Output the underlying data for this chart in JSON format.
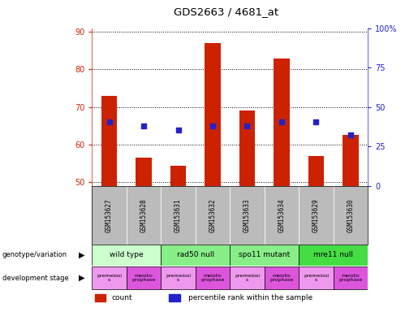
{
  "title": "GDS2663 / 4681_at",
  "samples": [
    "GSM153627",
    "GSM153628",
    "GSM153631",
    "GSM153632",
    "GSM153633",
    "GSM153634",
    "GSM153629",
    "GSM153630"
  ],
  "bar_values": [
    73,
    56.5,
    54.5,
    87,
    69,
    83,
    57,
    62.5
  ],
  "dot_values": [
    66,
    65,
    64,
    65,
    65,
    66,
    66,
    62.5
  ],
  "ylim_left": [
    49,
    91
  ],
  "ylim_right": [
    0,
    100
  ],
  "yticks_left": [
    50,
    60,
    70,
    80,
    90
  ],
  "yticks_right": [
    0,
    25,
    50,
    75,
    100
  ],
  "bar_color": "#cc2200",
  "dot_color": "#2222cc",
  "bar_bottom": 49,
  "genotype_groups": [
    {
      "label": "wild type",
      "start": 0,
      "end": 2,
      "color": "#ccffcc"
    },
    {
      "label": "rad50 null",
      "start": 2,
      "end": 4,
      "color": "#88ee88"
    },
    {
      "label": "spo11 mutant",
      "start": 4,
      "end": 6,
      "color": "#88ee88"
    },
    {
      "label": "mre11 null",
      "start": 6,
      "end": 8,
      "color": "#44dd44"
    }
  ],
  "dev_stage_groups": [
    {
      "label": "premeiosi\ns",
      "start": 0,
      "end": 1,
      "color": "#ee99ee"
    },
    {
      "label": "meiotic\nprophase",
      "start": 1,
      "end": 2,
      "color": "#dd55dd"
    },
    {
      "label": "premeiosi\ns",
      "start": 2,
      "end": 3,
      "color": "#ee99ee"
    },
    {
      "label": "meiotic\nprophase",
      "start": 3,
      "end": 4,
      "color": "#dd55dd"
    },
    {
      "label": "premeiosi\ns",
      "start": 4,
      "end": 5,
      "color": "#ee99ee"
    },
    {
      "label": "meiotic\nprophase",
      "start": 5,
      "end": 6,
      "color": "#dd55dd"
    },
    {
      "label": "premeiosi\ns",
      "start": 6,
      "end": 7,
      "color": "#ee99ee"
    },
    {
      "label": "meiotic\nprophase",
      "start": 7,
      "end": 8,
      "color": "#dd55dd"
    }
  ],
  "left_label_color": "#cc2200",
  "right_label_color": "#2222cc",
  "grid_color": "#000000",
  "background_color": "#ffffff",
  "tick_area_color": "#bbbbbb"
}
